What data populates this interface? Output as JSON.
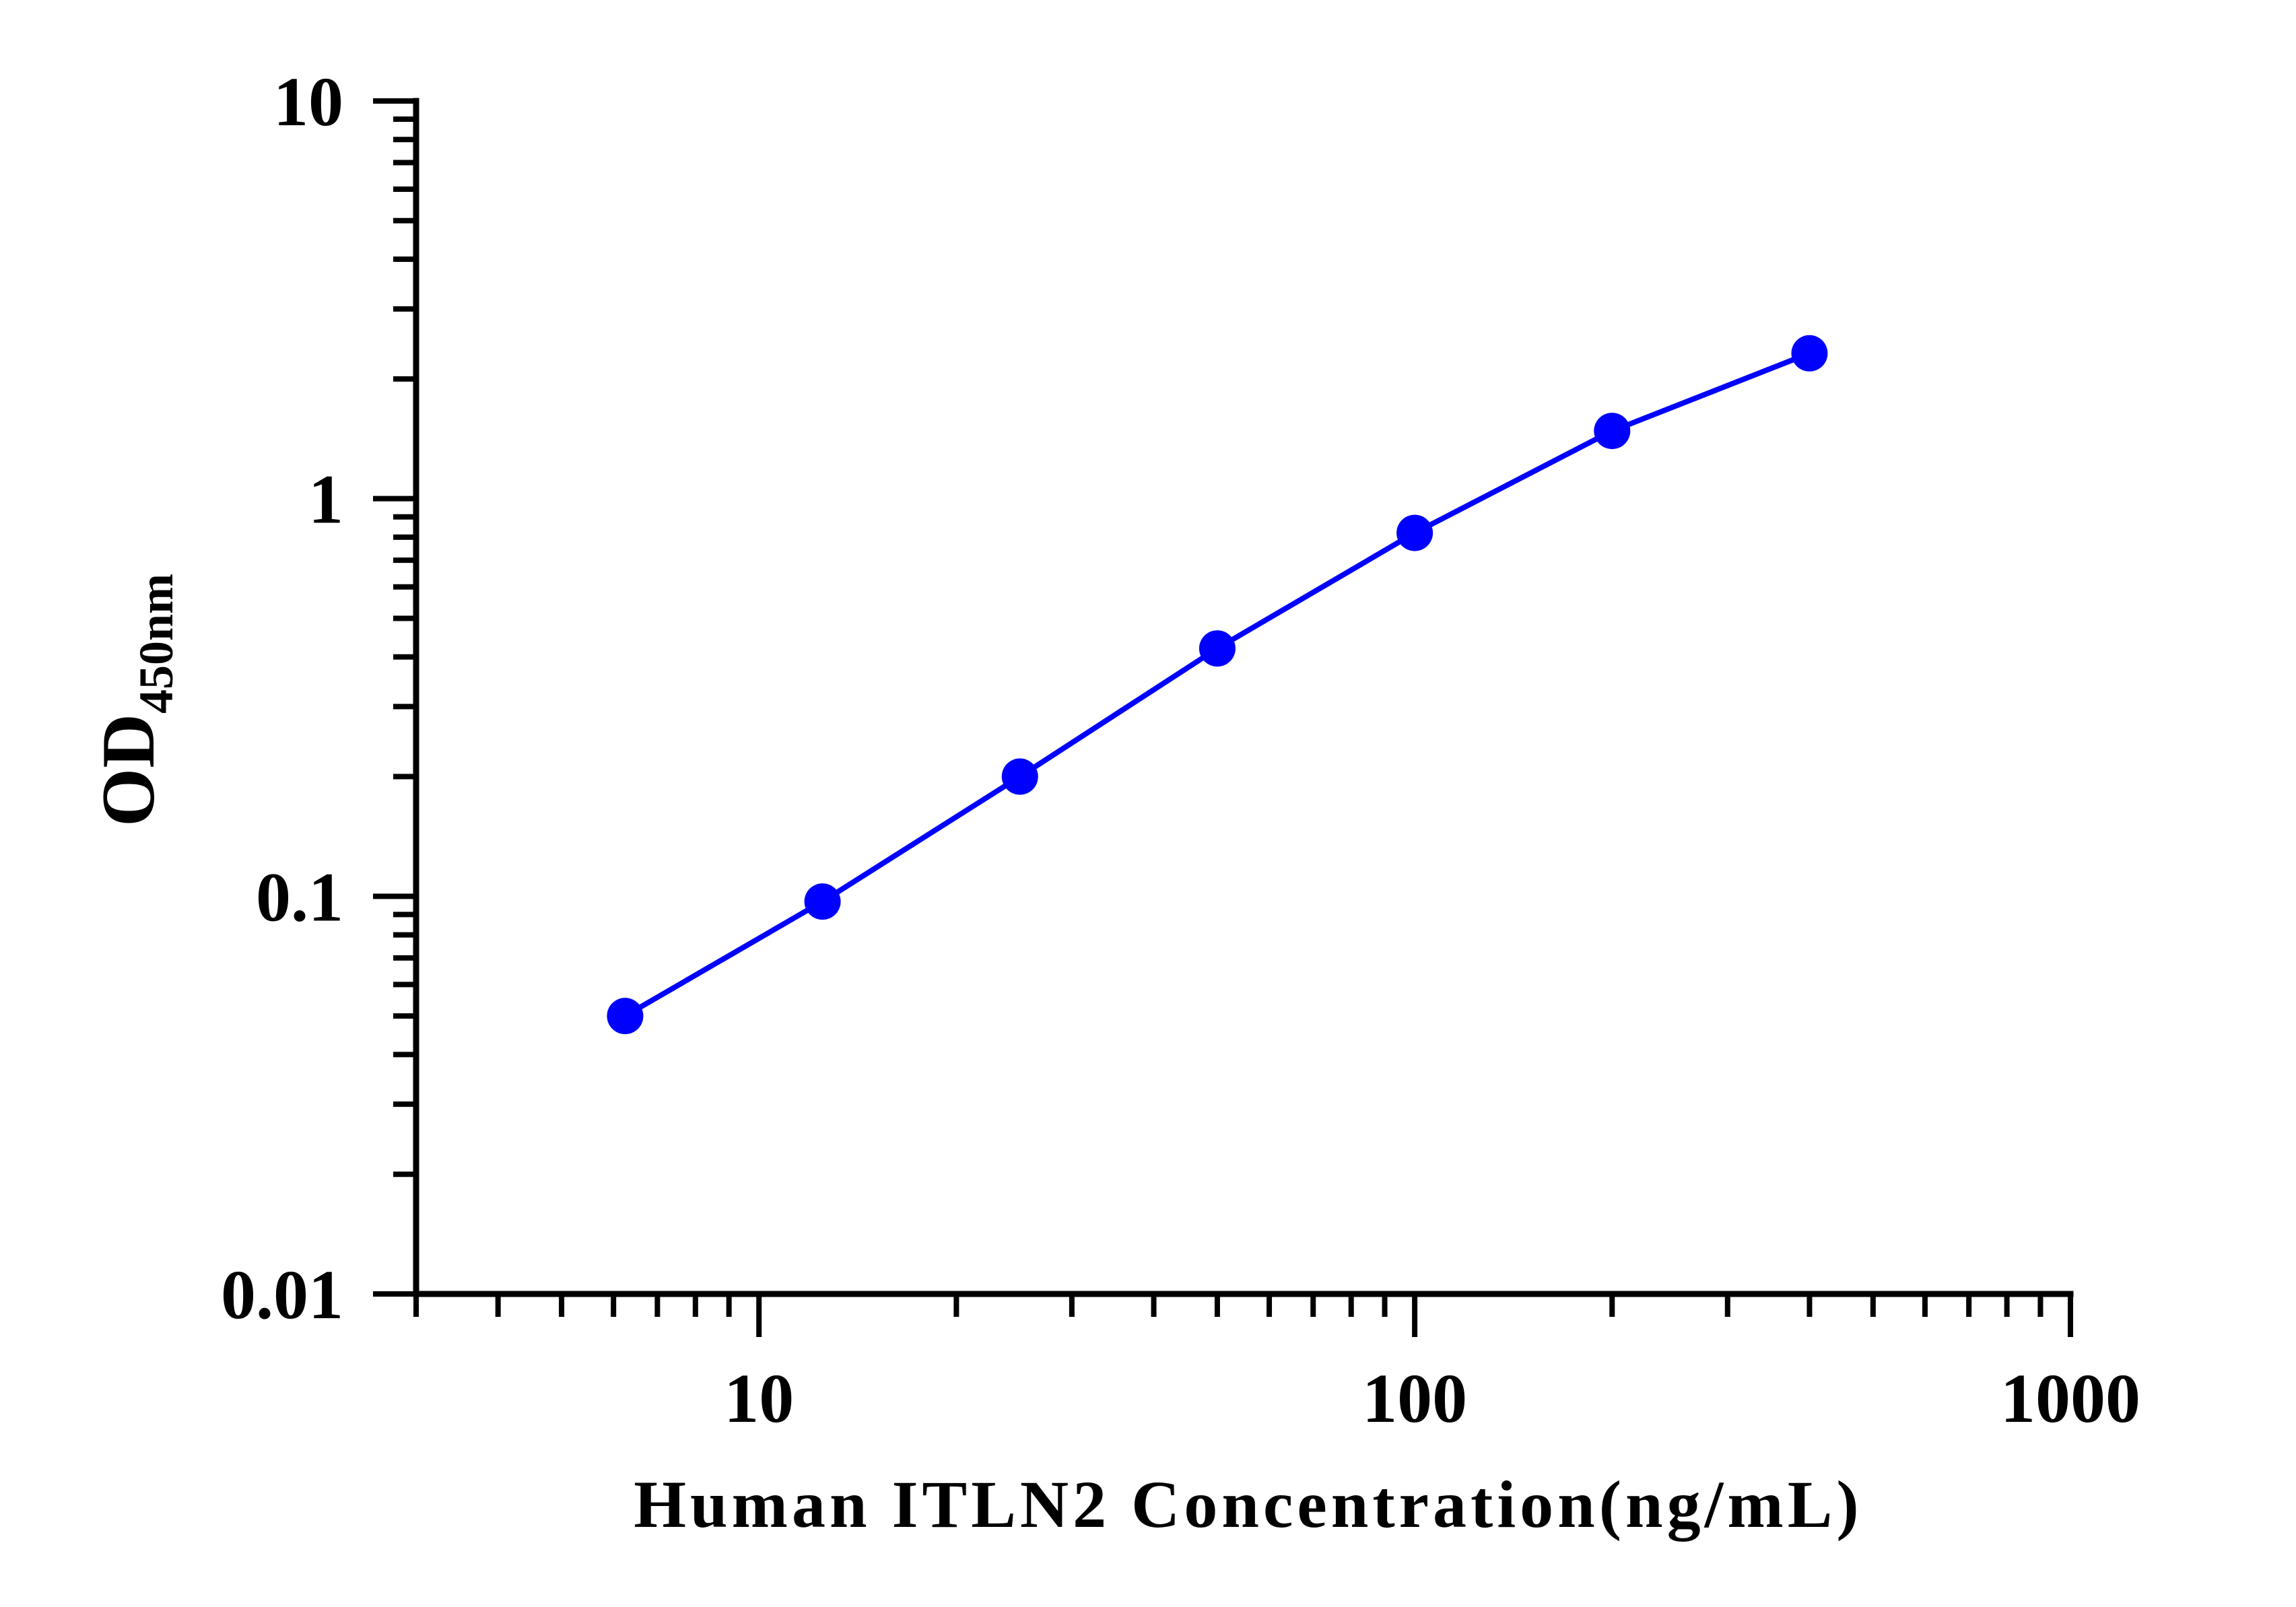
{
  "chart_data": {
    "type": "line",
    "xlabel": "Human ITLN2 Concentration(ng/mL)",
    "ylabel": {
      "main": "OD",
      "subscript": "450nm"
    },
    "x_scale": "log",
    "y_scale": "log",
    "xlim": [
      3,
      1000
    ],
    "ylim": [
      0.01,
      10
    ],
    "x_ticks": [
      {
        "value": 10,
        "label": "10"
      },
      {
        "value": 100,
        "label": "100"
      },
      {
        "value": 1000,
        "label": "1000"
      }
    ],
    "y_ticks": [
      {
        "value": 0.01,
        "label": "0.01"
      },
      {
        "value": 0.1,
        "label": "0.1"
      },
      {
        "value": 1,
        "label": "1"
      },
      {
        "value": 10,
        "label": "10"
      }
    ],
    "grid": false,
    "legend": "none",
    "series": [
      {
        "color": "#0000ff",
        "marker": "circle",
        "x": [
          6.25,
          12.5,
          25,
          50,
          100,
          200,
          400
        ],
        "y": [
          0.05,
          0.097,
          0.2,
          0.42,
          0.82,
          1.48,
          2.32
        ]
      }
    ]
  }
}
